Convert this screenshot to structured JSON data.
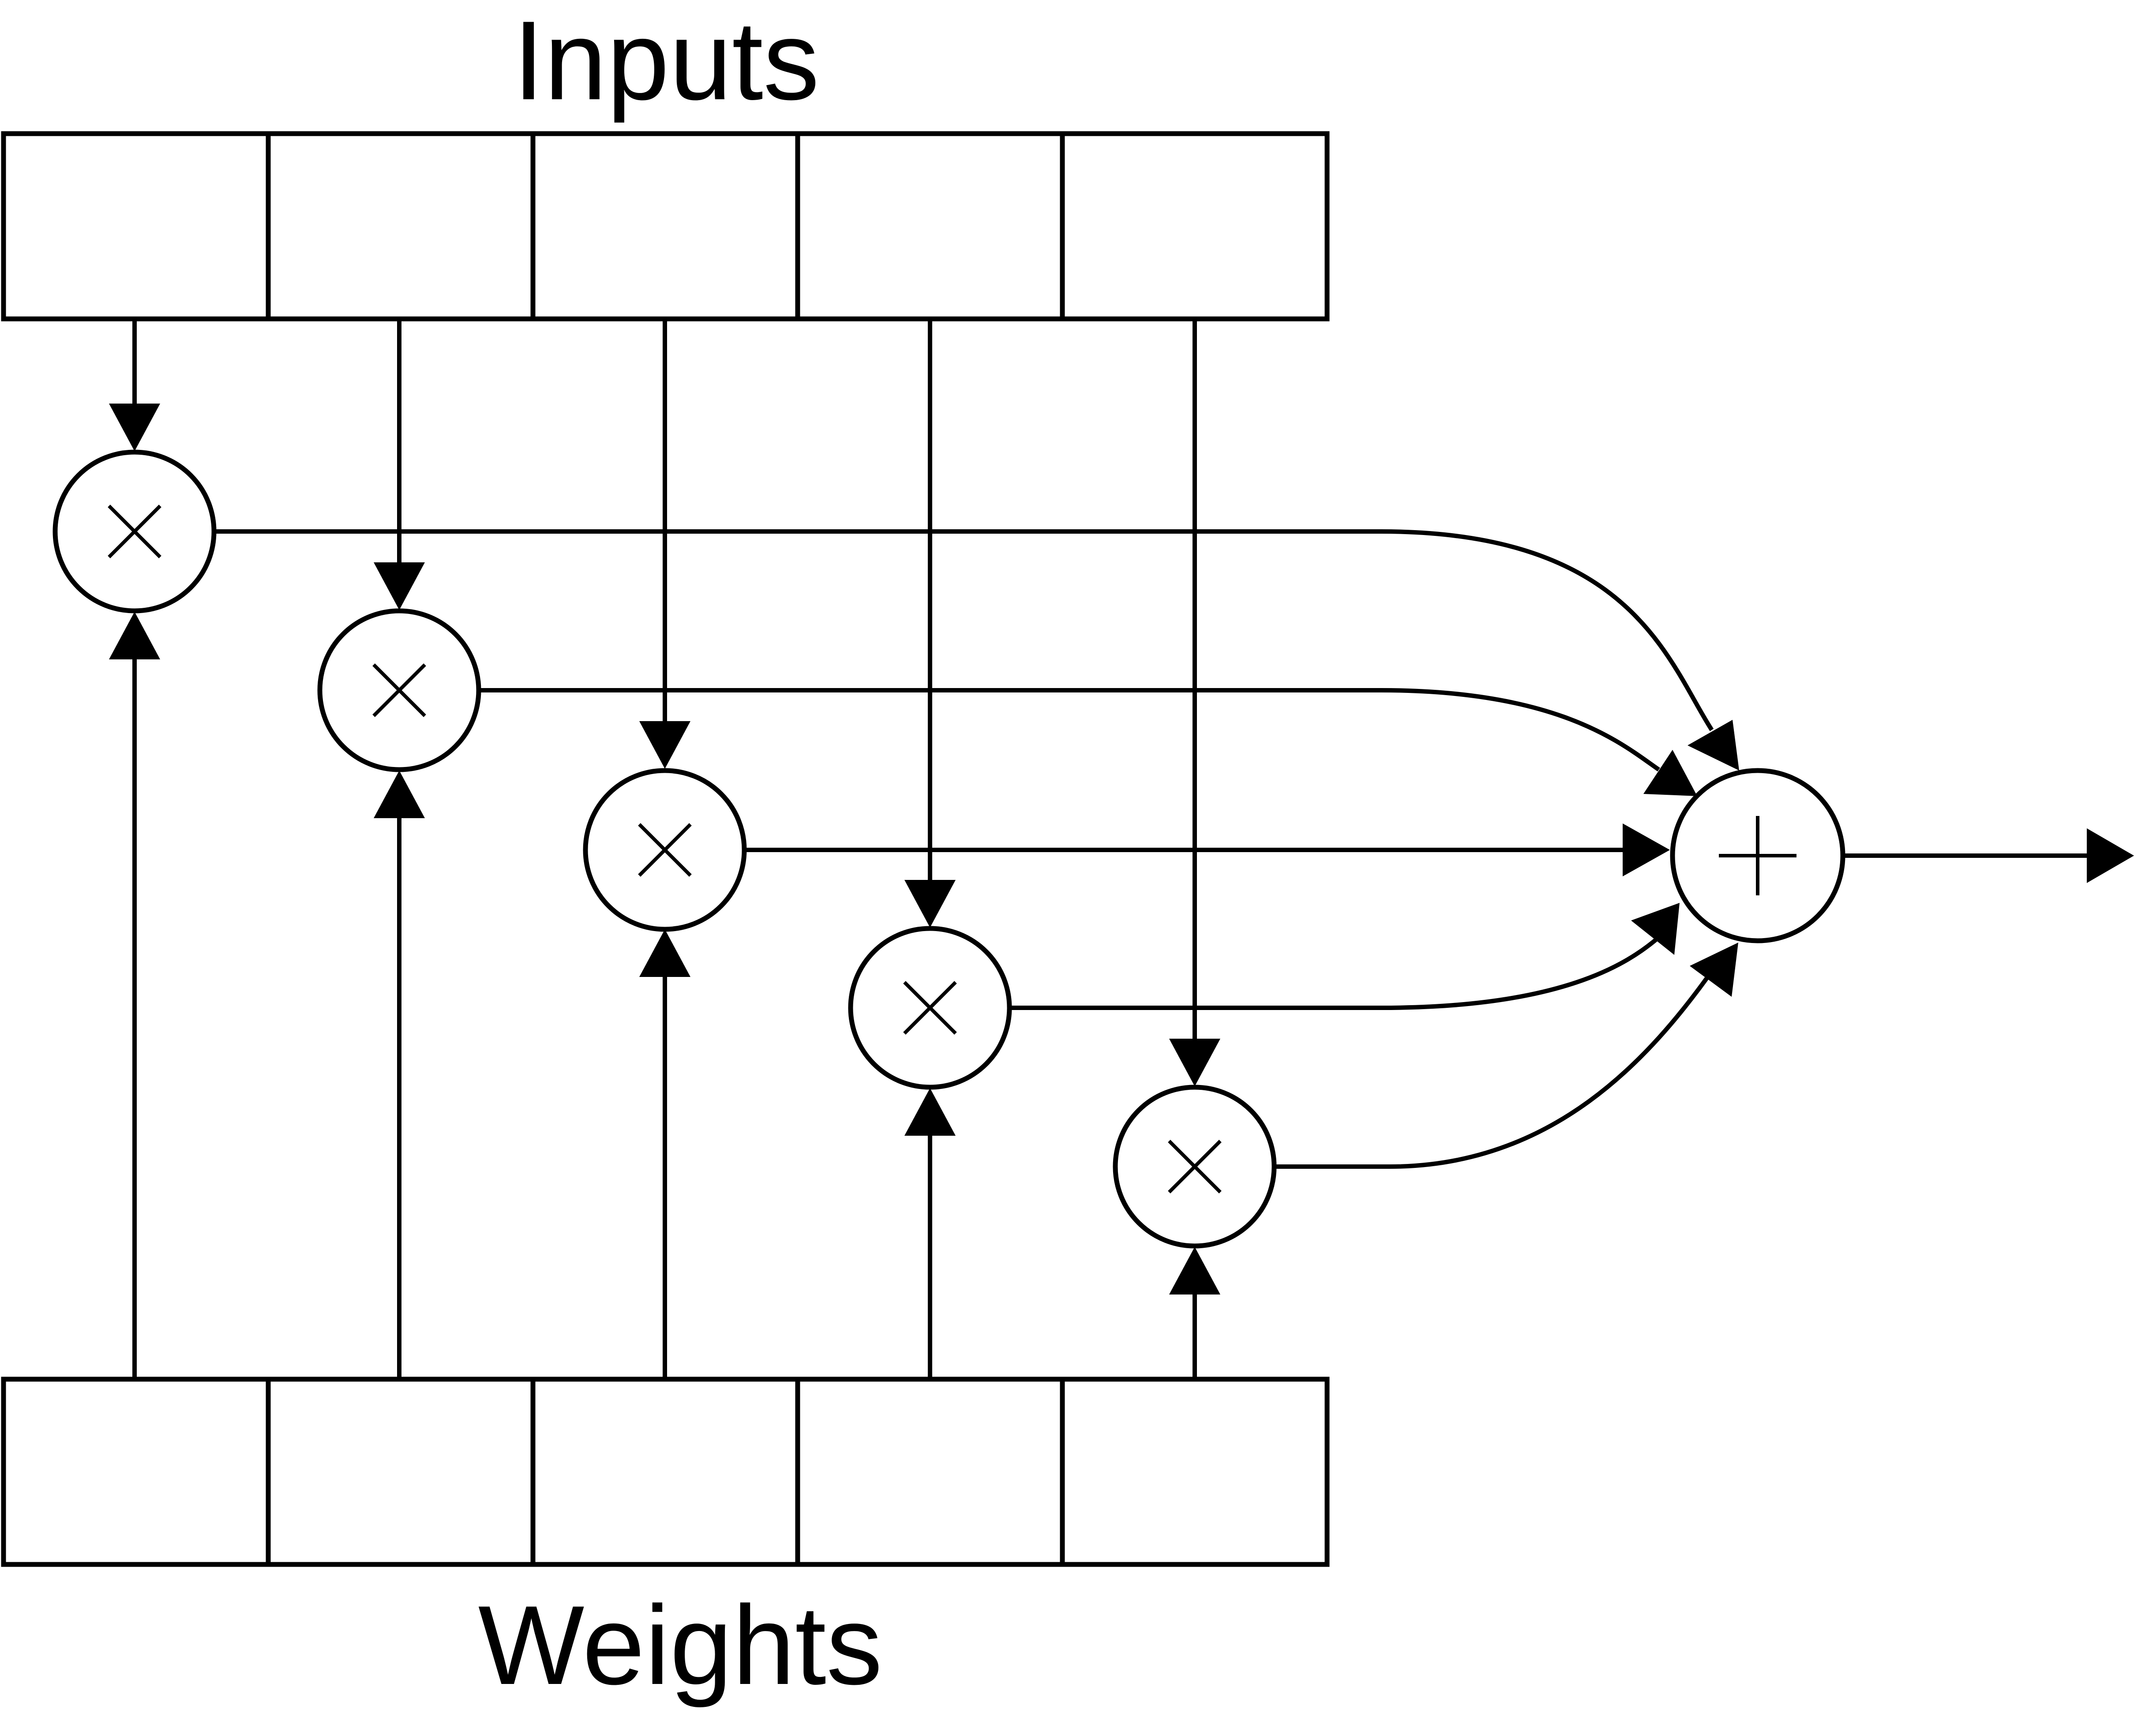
{
  "labels": {
    "inputs": "Inputs",
    "weights": "Weights"
  },
  "inputs": {
    "cell_count": 5
  },
  "weights": {
    "cell_count": 5
  },
  "multipliers": [
    {
      "symbol": "multiply",
      "input_index": 1,
      "weight_index": 1
    },
    {
      "symbol": "multiply",
      "input_index": 2,
      "weight_index": 2
    },
    {
      "symbol": "multiply",
      "input_index": 3,
      "weight_index": 3
    },
    {
      "symbol": "multiply",
      "input_index": 4,
      "weight_index": 4
    },
    {
      "symbol": "multiply",
      "input_index": 5,
      "weight_index": 5
    }
  ],
  "adder": {
    "symbol": "plus",
    "operand_count": 5
  },
  "output": {
    "present": true
  },
  "colors": {
    "stroke": "#000000",
    "background": "#ffffff"
  }
}
